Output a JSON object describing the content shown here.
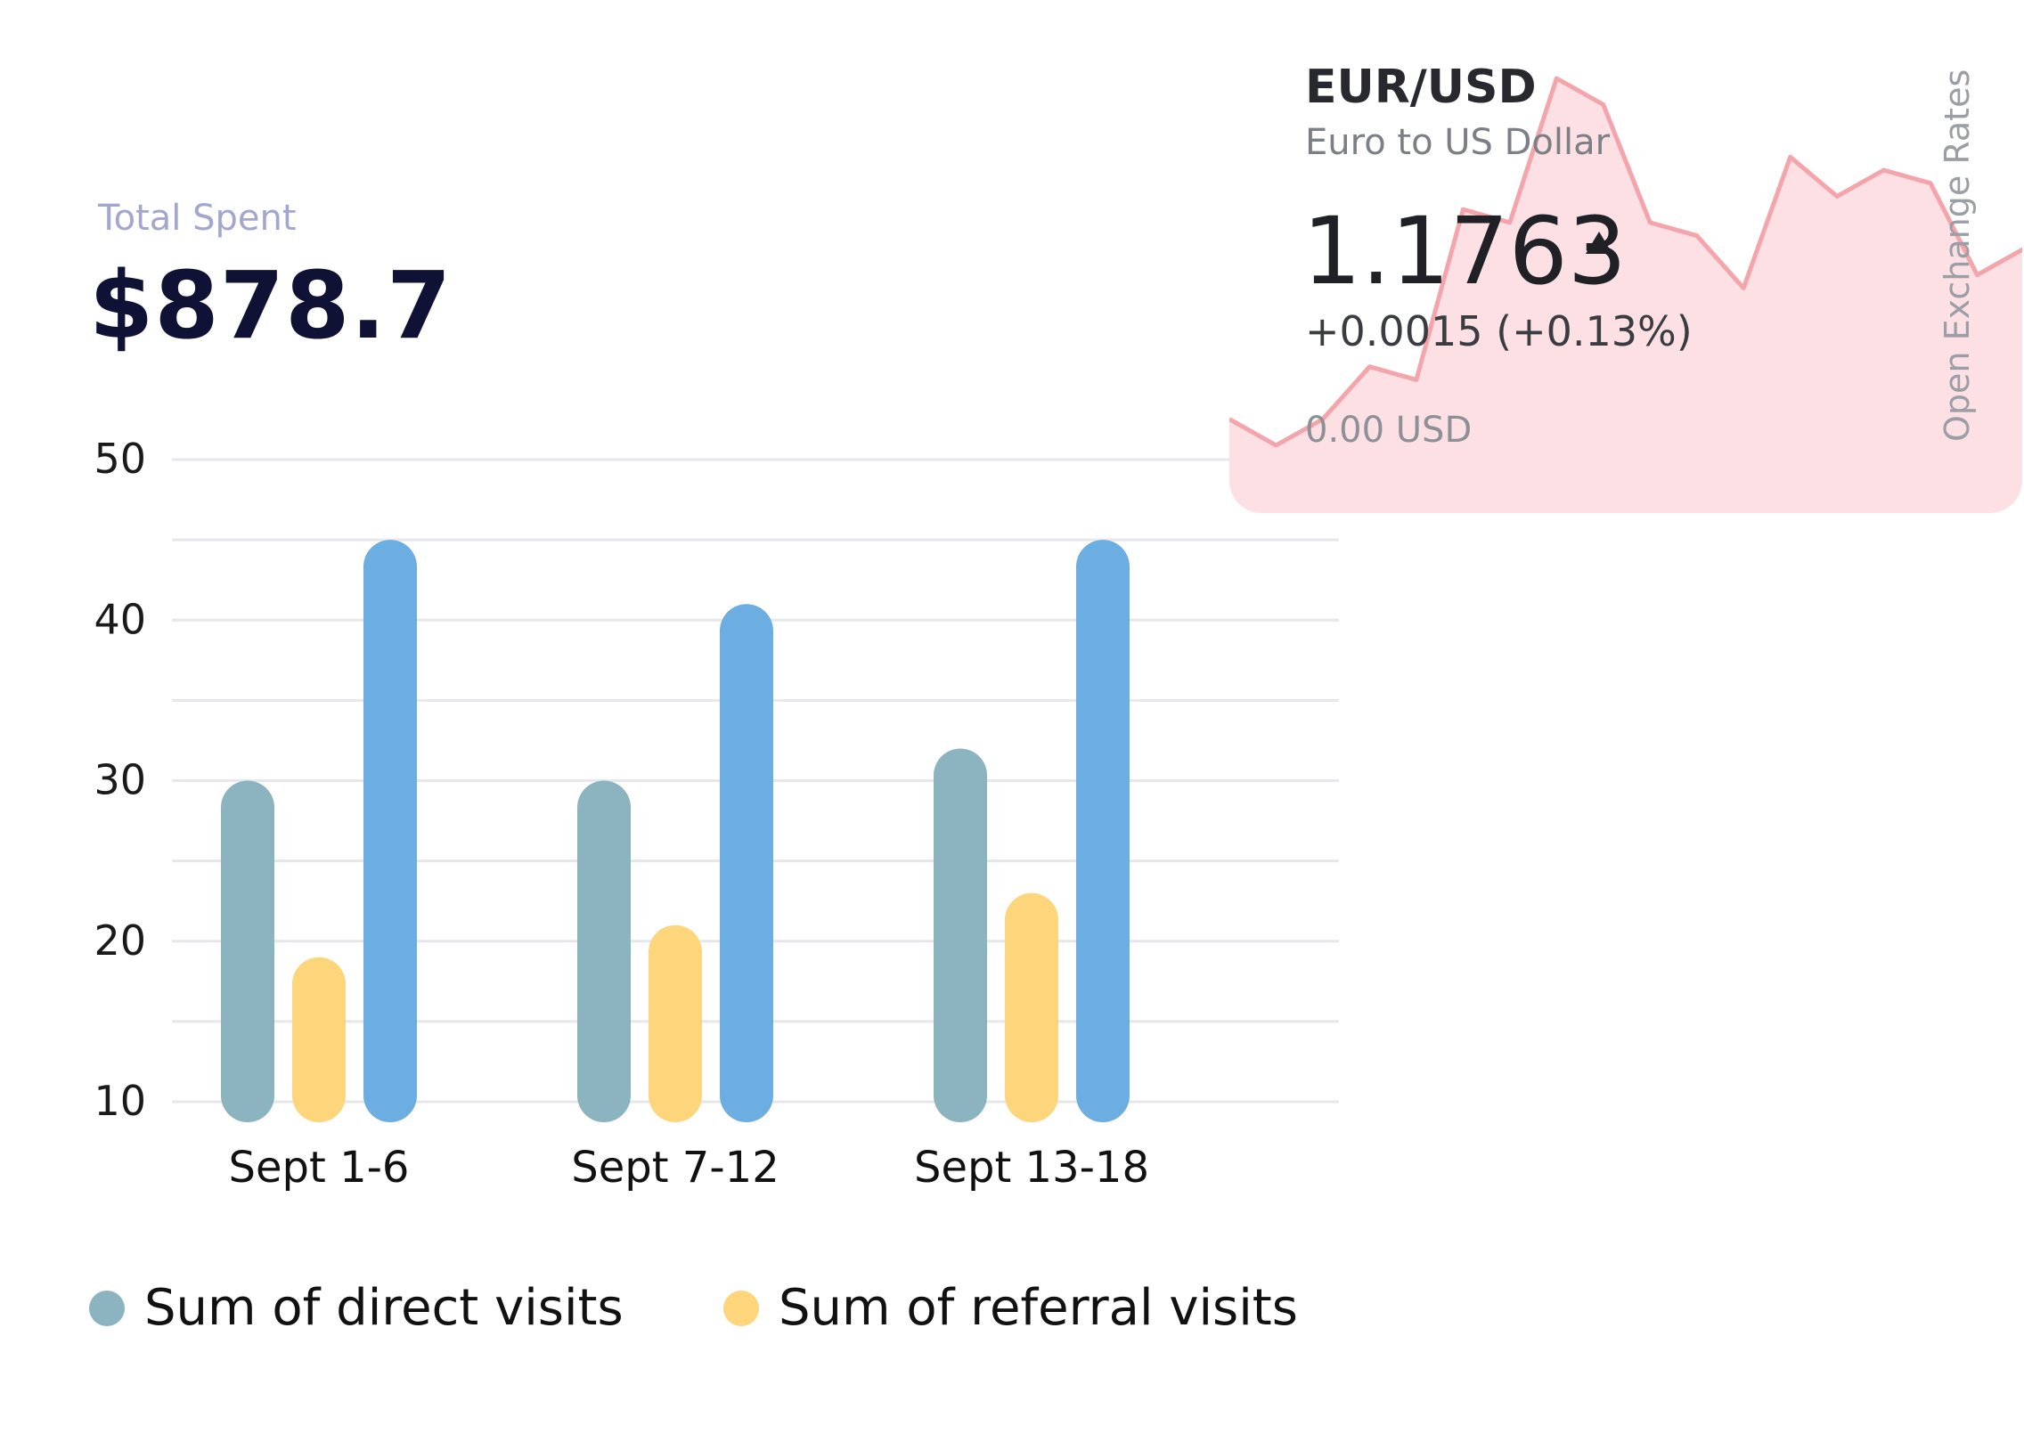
{
  "summary": {
    "label": "Total Spent",
    "amount": "$878.7"
  },
  "chart_data": [
    {
      "type": "bar",
      "categories": [
        "Sept 1-6",
        "Sept 7-12",
        "Sept 13-18"
      ],
      "series": [
        {
          "name": "Sum of direct visits",
          "values": [
            30,
            30,
            32
          ],
          "color": "#8bb3c0"
        },
        {
          "name": "Sum of referral visits",
          "values": [
            19,
            21,
            23
          ],
          "color": "#fdd67c"
        },
        {
          "values": [
            45,
            41,
            45
          ],
          "color": "#6caee2"
        }
      ],
      "ylim": [
        10,
        50
      ],
      "yticks": [
        "10",
        "20",
        "30",
        "40",
        "50"
      ],
      "grid": true,
      "legend": "bottom"
    },
    {
      "type": "area",
      "values": [
        1.17,
        1.168,
        1.17,
        1.174,
        1.173,
        1.186,
        1.185,
        1.196,
        1.194,
        1.185,
        1.184,
        1.18,
        1.19,
        1.187,
        1.189,
        1.188,
        1.181,
        1.183
      ],
      "color": "#f4a5ab",
      "fill": "#fde0e3"
    }
  ],
  "ticker": {
    "pair": "EUR/USD",
    "name": "Euro to US Dollar",
    "price": "1.1763",
    "trend_icon": "up-arrow-icon",
    "change": "+0.0015 (+0.13%)",
    "baseline": "0.00 USD",
    "source": "Open Exchange Rates"
  }
}
